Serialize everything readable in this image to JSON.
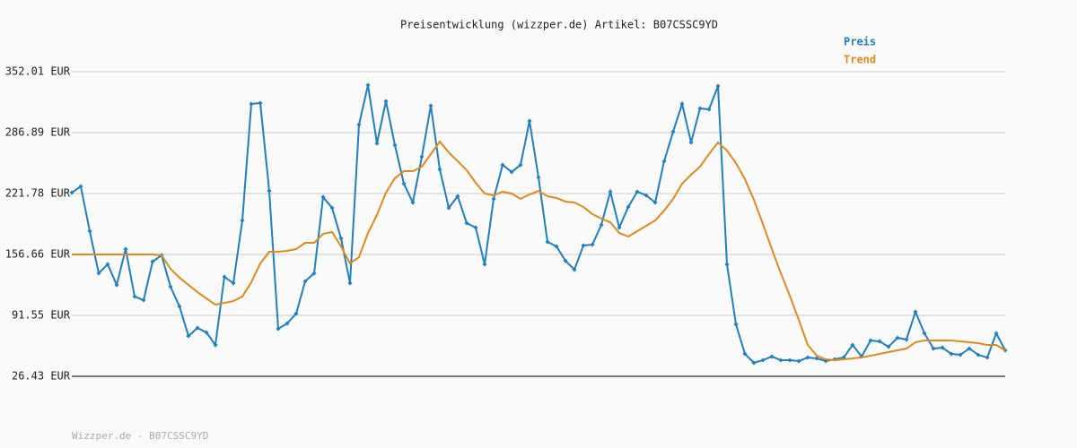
{
  "chart_data": {
    "type": "line",
    "title": "Preisentwicklung (wizzper.de) Artikel: B07CSSC9YD",
    "footer": "Wizzper.de - B07CSSC9YD",
    "ylim": [
      26.43,
      352.01
    ],
    "yticks": [
      {
        "value": 26.43,
        "label": "26.43 EUR"
      },
      {
        "value": 91.55,
        "label": "91.55 EUR"
      },
      {
        "value": 156.66,
        "label": "156.66 EUR"
      },
      {
        "value": 221.78,
        "label": "221.78 EUR"
      },
      {
        "value": 286.89,
        "label": "286.89 EUR"
      },
      {
        "value": 352.01,
        "label": "352.01 EUR"
      }
    ],
    "grid": true,
    "legend": "top-right",
    "series": [
      {
        "name": "Preis",
        "color": "#1f7fbf",
        "markers": true,
        "values": [
          222.7,
          229.4,
          181.6,
          136.6,
          146.1,
          124.1,
          162.4,
          111.7,
          107.8,
          149.0,
          155.7,
          122.2,
          101.1,
          69.5,
          78.1,
          73.4,
          59.9,
          132.7,
          126.0,
          193.0,
          317.5,
          318.5,
          224.6,
          77.2,
          82.9,
          93.5,
          127.9,
          136.6,
          217.9,
          206.5,
          173.9,
          126.0,
          295.5,
          337.6,
          275.4,
          320.4,
          273.5,
          232.3,
          212.2,
          261.0,
          315.6,
          247.6,
          206.5,
          218.9,
          190.2,
          185.4,
          146.1,
          216.0,
          252.4,
          244.8,
          252.4,
          299.3,
          239.0,
          170.1,
          165.3,
          150.0,
          140.4,
          166.2,
          167.2,
          188.3,
          223.7,
          185.4,
          207.4,
          223.7,
          219.9,
          212.2,
          256.3,
          287.9,
          317.5,
          276.4,
          312.8,
          311.8,
          336.7,
          146.1,
          82.0,
          50.4,
          40.8,
          43.7,
          47.5,
          43.7,
          43.7,
          42.7,
          46.5,
          45.6,
          42.7,
          44.6,
          46.5,
          59.9,
          47.5,
          64.7,
          63.8,
          58.0,
          67.6,
          65.7,
          95.4,
          72.4,
          56.1,
          57.1,
          50.4,
          49.4,
          56.1,
          49.4,
          46.5,
          72.4,
          54.2
        ]
      },
      {
        "name": "Trend",
        "color": "#e08a1e",
        "markers": false,
        "values": [
          156.7,
          156.7,
          156.7,
          156.7,
          156.7,
          156.7,
          156.7,
          156.7,
          156.7,
          156.7,
          155.7,
          141.3,
          131.8,
          124.1,
          116.4,
          109.7,
          103.0,
          104.9,
          106.9,
          111.7,
          127.0,
          147.1,
          159.5,
          159.5,
          160.5,
          162.4,
          169.1,
          169.1,
          178.7,
          180.6,
          165.3,
          147.1,
          153.8,
          179.6,
          198.8,
          222.7,
          238.1,
          245.7,
          245.7,
          250.5,
          263.9,
          277.3,
          265.8,
          256.3,
          246.7,
          233.3,
          221.8,
          219.9,
          223.7,
          221.8,
          216.0,
          220.8,
          224.6,
          218.9,
          217.0,
          213.2,
          212.2,
          207.4,
          199.8,
          195.0,
          191.1,
          179.6,
          175.8,
          181.6,
          187.3,
          193.0,
          203.6,
          216.0,
          232.3,
          241.9,
          250.5,
          263.9,
          276.4,
          267.7,
          254.3,
          237.1,
          215.1,
          189.2,
          162.4,
          136.6,
          112.6,
          86.8,
          59.9,
          48.5,
          44.6,
          43.7,
          44.6,
          45.6,
          46.5,
          48.5,
          50.4,
          52.3,
          54.2,
          56.1,
          62.8,
          64.7,
          64.7,
          64.7,
          64.7,
          63.8,
          62.8,
          61.9,
          59.9,
          59.9,
          54.2
        ]
      }
    ]
  }
}
